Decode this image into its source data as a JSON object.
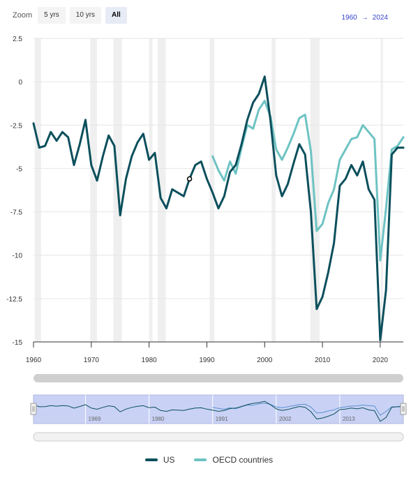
{
  "zoom": {
    "label": "Zoom",
    "buttons": [
      {
        "label": "5 yrs",
        "active": false
      },
      {
        "label": "10 yrs",
        "active": false
      },
      {
        "label": "All",
        "active": true
      }
    ]
  },
  "range": {
    "from": "1960",
    "arrow": "→",
    "to": "2024"
  },
  "colors": {
    "us": "#0b4f5c",
    "oecd": "#6ec3c3",
    "band": "#efefef"
  },
  "chart_data": {
    "type": "line",
    "title": "",
    "xlabel": "",
    "ylabel": "",
    "xlim": [
      1960,
      2024
    ],
    "ylim": [
      -15,
      2.5
    ],
    "yticks": [
      2.5,
      0,
      -2.5,
      -5,
      -7.5,
      -10,
      -12.5,
      -15
    ],
    "ytick_labels": [
      "2.5",
      "0",
      "-2.5",
      "-5",
      "-7.5",
      "-10",
      "-12.5",
      "-15"
    ],
    "xticks": [
      1960,
      1970,
      1980,
      1990,
      2000,
      2010,
      2020
    ],
    "xtick_labels": [
      "1960",
      "1970",
      "1980",
      "1990",
      "2000",
      "2010",
      "2020"
    ],
    "grid": "horizontal",
    "legend_position": "bottom-center",
    "recession_bands": [
      [
        1960.2,
        1961.3
      ],
      [
        1969.8,
        1971.0
      ],
      [
        1973.8,
        1975.3
      ],
      [
        1980.0,
        1980.6
      ],
      [
        1981.5,
        1982.9
      ],
      [
        1990.5,
        1991.3
      ],
      [
        2001.2,
        2001.9
      ],
      [
        2007.9,
        2009.5
      ],
      [
        2020.1,
        2020.4
      ]
    ],
    "marker": {
      "series": "US",
      "x": 1987,
      "y": -5.6
    },
    "series": [
      {
        "name": "US",
        "x": [
          1960,
          1961,
          1962,
          1963,
          1964,
          1965,
          1966,
          1967,
          1968,
          1969,
          1970,
          1971,
          1972,
          1973,
          1974,
          1975,
          1976,
          1977,
          1978,
          1979,
          1980,
          1981,
          1982,
          1983,
          1984,
          1985,
          1986,
          1987,
          1988,
          1989,
          1990,
          1991,
          1992,
          1993,
          1994,
          1995,
          1996,
          1997,
          1998,
          1999,
          2000,
          2001,
          2002,
          2003,
          2004,
          2005,
          2006,
          2007,
          2008,
          2009,
          2010,
          2011,
          2012,
          2013,
          2014,
          2015,
          2016,
          2017,
          2018,
          2019,
          2020,
          2021,
          2022,
          2023,
          2024
        ],
        "values": [
          -2.4,
          -3.8,
          -3.7,
          -2.9,
          -3.4,
          -2.9,
          -3.2,
          -4.8,
          -3.6,
          -2.2,
          -4.8,
          -5.7,
          -4.3,
          -3.1,
          -3.7,
          -7.7,
          -5.6,
          -4.3,
          -3.5,
          -3.0,
          -4.5,
          -4.1,
          -6.7,
          -7.3,
          -6.2,
          -6.4,
          -6.6,
          -5.6,
          -4.8,
          -4.6,
          -5.6,
          -6.4,
          -7.3,
          -6.6,
          -5.2,
          -4.8,
          -3.6,
          -2.2,
          -1.2,
          -0.7,
          0.3,
          -2.2,
          -5.4,
          -6.6,
          -5.9,
          -4.7,
          -3.6,
          -4.2,
          -7.5,
          -13.1,
          -12.4,
          -11.0,
          -9.3,
          -6.0,
          -5.6,
          -4.8,
          -5.4,
          -4.6,
          -6.2,
          -6.8,
          -14.9,
          -12.0,
          -4.2,
          -3.8,
          -3.8
        ]
      },
      {
        "name": "OECD countries",
        "x": [
          1991,
          1992,
          1993,
          1994,
          1995,
          1996,
          1997,
          1998,
          1999,
          2000,
          2001,
          2002,
          2003,
          2004,
          2005,
          2006,
          2007,
          2008,
          2009,
          2010,
          2011,
          2012,
          2013,
          2014,
          2015,
          2016,
          2017,
          2018,
          2019,
          2020,
          2021,
          2022,
          2023,
          2024
        ],
        "values": [
          -4.3,
          -5.1,
          -5.7,
          -4.6,
          -5.3,
          -3.8,
          -2.5,
          -2.7,
          -1.6,
          -1.1,
          -2.0,
          -3.9,
          -4.5,
          -3.8,
          -3.0,
          -2.1,
          -1.9,
          -4.0,
          -8.6,
          -8.2,
          -7.0,
          -6.2,
          -4.5,
          -3.9,
          -3.3,
          -3.2,
          -2.5,
          -2.9,
          -3.3,
          -10.3,
          -7.3,
          -3.9,
          -3.7,
          -3.2
        ]
      }
    ]
  },
  "navigator": {
    "labels": [
      "1969",
      "1980",
      "1991",
      "2002",
      "2013"
    ],
    "label_years": [
      1969,
      1980,
      1991,
      2002,
      2013
    ]
  },
  "legend": [
    {
      "label": "US",
      "color": "#0b4f5c"
    },
    {
      "label": "OECD countries",
      "color": "#6ec3c3"
    }
  ]
}
